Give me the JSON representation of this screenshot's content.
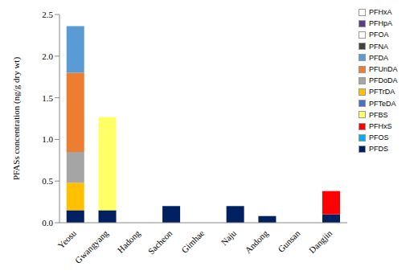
{
  "chart_data": {
    "type": "bar",
    "stacked": true,
    "y_label": "PFASs concentration (ng/g dry wt)",
    "categories": [
      "Yeosu",
      "Gwangyang",
      "Hadong",
      "Sacheon",
      "Gimhae",
      "Naju",
      "Andong",
      "Gunsan",
      "Dangjin"
    ],
    "ylim": [
      0,
      2.5
    ],
    "yticks": [
      {
        "value": 0,
        "label": "0.0"
      },
      0.5,
      {
        "value": 1,
        "label": "1.0"
      },
      1.5,
      {
        "value": 2,
        "label": "2.0"
      },
      2.5
    ],
    "grid": false,
    "legend": "right",
    "series": [
      {
        "name": "PFHxA",
        "color": "#ffffff",
        "values": [
          0,
          0,
          0,
          0,
          0,
          0,
          0,
          0,
          0
        ]
      },
      {
        "name": "PFHpA",
        "color": "#5b3b8c",
        "values": [
          0,
          0,
          0,
          0,
          0,
          0,
          0,
          0,
          0
        ]
      },
      {
        "name": "PFOA",
        "color": "#ffffff",
        "values": [
          0,
          0,
          0,
          0,
          0,
          0,
          0,
          0,
          0
        ]
      },
      {
        "name": "PFNA",
        "color": "#404040",
        "values": [
          0,
          0,
          0,
          0,
          0,
          0,
          0,
          0,
          0
        ]
      },
      {
        "name": "PFDA",
        "color": "#5b9bd5",
        "values": [
          0.56,
          0,
          0,
          0,
          0,
          0,
          0,
          0,
          0
        ]
      },
      {
        "name": "PFUnDA",
        "color": "#ed7d31",
        "values": [
          0.95,
          0,
          0,
          0,
          0,
          0,
          0,
          0,
          0
        ]
      },
      {
        "name": "PFDoDA",
        "color": "#a5a5a5",
        "values": [
          0.37,
          0,
          0,
          0,
          0,
          0,
          0,
          0,
          0
        ]
      },
      {
        "name": "PFTrDA",
        "color": "#ffc000",
        "values": [
          0.33,
          0,
          0,
          0,
          0,
          0,
          0,
          0,
          0
        ]
      },
      {
        "name": "PFTeDA",
        "color": "#4472c4",
        "values": [
          0,
          0,
          0,
          0,
          0,
          0,
          0,
          0,
          0
        ]
      },
      {
        "name": "PFBS",
        "color": "#ffff66",
        "values": [
          0,
          1.12,
          0,
          0,
          0,
          0,
          0,
          0,
          0
        ]
      },
      {
        "name": "PFHxS",
        "color": "#ff0000",
        "values": [
          0,
          0,
          0,
          0,
          0,
          0,
          0,
          0,
          0.28
        ]
      },
      {
        "name": "PFOS",
        "color": "#00b0f0",
        "values": [
          0,
          0,
          0,
          0,
          0,
          0,
          0,
          0,
          0
        ]
      },
      {
        "name": "PFDS",
        "color": "#002060",
        "values": [
          0.15,
          0.15,
          0,
          0.2,
          0,
          0.2,
          0.08,
          0,
          0.1
        ]
      }
    ]
  }
}
